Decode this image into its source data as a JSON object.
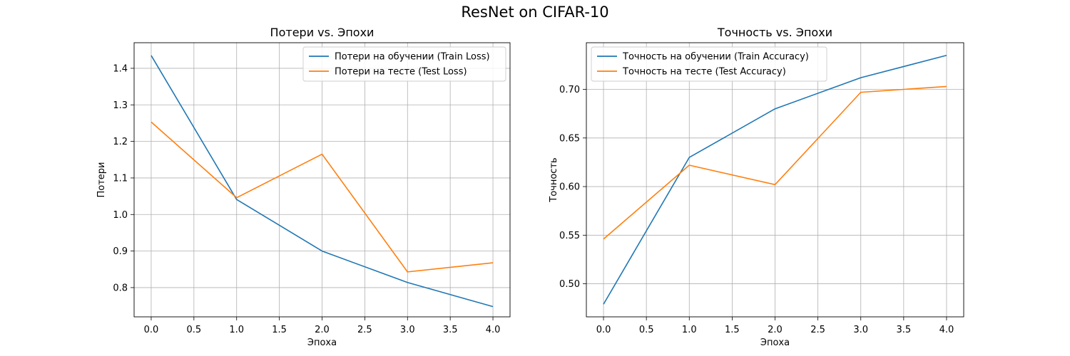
{
  "figure": {
    "title": "ResNet on CIFAR-10"
  },
  "chart_data": [
    {
      "type": "line",
      "title": "Потери vs. Эпохи",
      "xlabel": "Эпоха",
      "ylabel": "Потери",
      "x": [
        0,
        1,
        2,
        3,
        4
      ],
      "xlim": [
        -0.2,
        4.2
      ],
      "ylim": [
        0.72,
        1.47
      ],
      "xticks": [
        0,
        0.5,
        1,
        1.5,
        2,
        2.5,
        3,
        3.5,
        4
      ],
      "xtick_labels": [
        "0.0",
        "0.5",
        "1.0",
        "1.5",
        "2.0",
        "2.5",
        "3.0",
        "3.5",
        "4.0"
      ],
      "yticks": [
        0.8,
        0.9,
        1.0,
        1.1,
        1.2,
        1.3,
        1.4
      ],
      "ytick_labels": [
        "0.8",
        "0.9",
        "1.0",
        "1.1",
        "1.2",
        "1.3",
        "1.4"
      ],
      "grid": true,
      "legend_position": "upper right",
      "series": [
        {
          "name": "Потери на обучении (Train Loss)",
          "color": "#1f77b4",
          "values": [
            1.435,
            1.041,
            0.9,
            0.814,
            0.748
          ]
        },
        {
          "name": "Потери на тесте (Test Loss)",
          "color": "#ff7f0e",
          "values": [
            1.253,
            1.046,
            1.165,
            0.843,
            0.868
          ]
        }
      ]
    },
    {
      "type": "line",
      "title": "Точность vs. Эпохи",
      "xlabel": "Эпоха",
      "ylabel": "Точность",
      "x": [
        0,
        1,
        2,
        3,
        4
      ],
      "xlim": [
        -0.2,
        4.2
      ],
      "ylim": [
        0.466,
        0.748
      ],
      "xticks": [
        0,
        0.5,
        1,
        1.5,
        2,
        2.5,
        3,
        3.5,
        4
      ],
      "xtick_labels": [
        "0.0",
        "0.5",
        "1.0",
        "1.5",
        "2.0",
        "2.5",
        "3.0",
        "3.5",
        "4.0"
      ],
      "yticks": [
        0.5,
        0.55,
        0.6,
        0.65,
        0.7
      ],
      "ytick_labels": [
        "0.50",
        "0.55",
        "0.60",
        "0.65",
        "0.70"
      ],
      "grid": true,
      "legend_position": "upper left",
      "series": [
        {
          "name": "Точность на обучении (Train Accuracy)",
          "color": "#1f77b4",
          "values": [
            0.479,
            0.63,
            0.68,
            0.712,
            0.735
          ]
        },
        {
          "name": "Точность на тесте (Test Accuracy)",
          "color": "#ff7f0e",
          "values": [
            0.546,
            0.622,
            0.602,
            0.697,
            0.703
          ]
        }
      ]
    }
  ]
}
